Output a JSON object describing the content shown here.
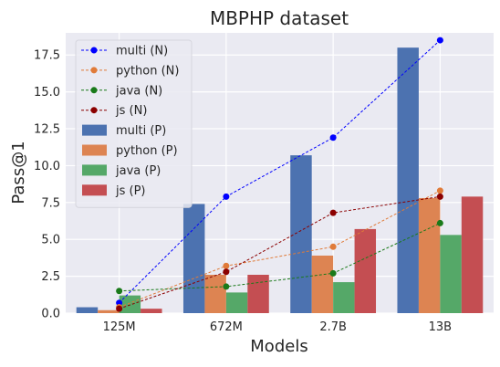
{
  "chart_data": {
    "type": "bar",
    "title": "MBPHP dataset",
    "xlabel": "Models",
    "ylabel": "Pass@1",
    "categories": [
      "125M",
      "672M",
      "2.7B",
      "13B"
    ],
    "ylim": [
      0,
      19
    ],
    "yticks": [
      0.0,
      2.5,
      5.0,
      7.5,
      10.0,
      12.5,
      15.0,
      17.5
    ],
    "ytick_labels": [
      "0.0",
      "2.5",
      "5.0",
      "7.5",
      "10.0",
      "12.5",
      "15.0",
      "17.5"
    ],
    "grid": true,
    "legend_position": "top-left",
    "bar_series": [
      {
        "name": "multi (P)",
        "color": "#4c72b0",
        "values": [
          0.4,
          7.4,
          10.7,
          18.0
        ]
      },
      {
        "name": "python (P)",
        "color": "#dd8452",
        "values": [
          0.2,
          2.6,
          3.9,
          7.8
        ]
      },
      {
        "name": "java (P)",
        "color": "#55a868",
        "values": [
          1.2,
          1.4,
          2.1,
          5.3
        ]
      },
      {
        "name": "js (P)",
        "color": "#c44e52",
        "values": [
          0.3,
          2.6,
          5.7,
          7.9
        ]
      }
    ],
    "line_series": [
      {
        "name": "multi (N)",
        "color": "#0000ff",
        "points": [
          [
            0,
            0.7
          ],
          [
            1,
            7.9
          ],
          [
            2,
            11.9
          ],
          [
            3,
            18.5
          ]
        ]
      },
      {
        "name": "python (N)",
        "color": "#e07b39",
        "points": [
          [
            0,
            0.4
          ],
          [
            1,
            3.2
          ],
          [
            2,
            4.5
          ],
          [
            3,
            8.3
          ]
        ]
      },
      {
        "name": "java (N)",
        "color": "#1a7a1a",
        "points": [
          [
            0,
            1.5
          ],
          [
            1,
            1.8
          ],
          [
            2,
            2.7
          ],
          [
            3,
            6.1
          ]
        ]
      },
      {
        "name": "js (N)",
        "color": "#8b0000",
        "points": [
          [
            0,
            0.3
          ],
          [
            1,
            2.8
          ],
          [
            2,
            6.8
          ],
          [
            3,
            7.9
          ]
        ]
      }
    ]
  }
}
